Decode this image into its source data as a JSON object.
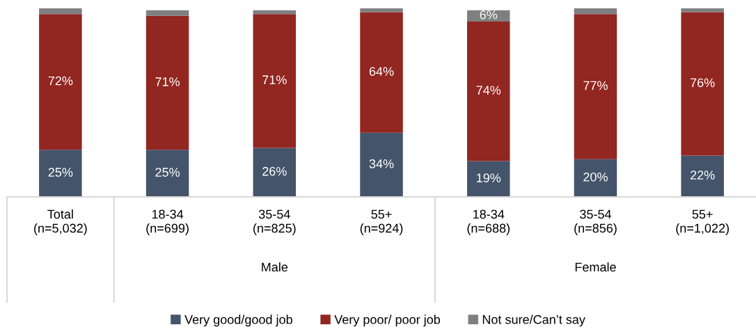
{
  "chart_data": {
    "type": "bar",
    "stacked": true,
    "categories": [
      "Total\n(n=5,032)",
      "18-34\n(n=699)",
      "35-54\n(n=825)",
      "55+\n(n=924)",
      "18-34\n(n=688)",
      "35-54\n(n=856)",
      "55+\n(n=1,022)"
    ],
    "annotations": [
      "Male",
      "Female"
    ],
    "series": [
      {
        "name": "Very good/good job",
        "color": "#44546a",
        "values": [
          25,
          25,
          26,
          34,
          19,
          20,
          22
        ],
        "value_labels": [
          "25%",
          "25%",
          "26%",
          "34%",
          "19%",
          "20%",
          "22%"
        ]
      },
      {
        "name": "Very poor/ poor job",
        "color": "#922621",
        "values": [
          72,
          71,
          71,
          64,
          74,
          77,
          76
        ],
        "value_labels": [
          "72%",
          "71%",
          "71%",
          "64%",
          "74%",
          "77%",
          "76%"
        ]
      },
      {
        "name": "Not sure/Can’t say",
        "color": "#7f7f7f",
        "values": [
          3,
          3,
          2,
          2,
          6,
          3,
          2
        ],
        "value_labels": [
          null,
          null,
          null,
          null,
          "6%",
          null,
          null
        ]
      }
    ],
    "ylim": [
      0,
      100
    ],
    "tick_labels": "x",
    "legend": "bottom"
  }
}
